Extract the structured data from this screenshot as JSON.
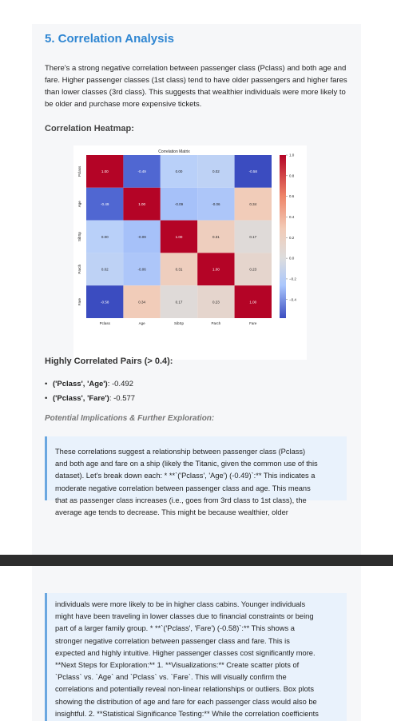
{
  "section": {
    "title": "5. Correlation Analysis",
    "intro": "There's a strong negative correlation between passenger class (Pclass) and both age and fare. Higher passenger classes (1st class) tend to have older passengers and higher fares than lower classes (3rd class). This suggests that wealthier individuals were more likely to be older and purchase more expensive tickets.",
    "heatmap_heading": "Correlation Heatmap:"
  },
  "chart_data": {
    "type": "heatmap",
    "title": "Correlation Matrix",
    "labels": [
      "Pclass",
      "Age",
      "SibSp",
      "Parch",
      "Fare"
    ],
    "matrix": [
      [
        1.0,
        -0.49,
        0.0,
        0.02,
        -0.58
      ],
      [
        -0.49,
        1.0,
        -0.09,
        -0.06,
        0.34
      ],
      [
        0.0,
        -0.09,
        1.0,
        0.31,
        0.17
      ],
      [
        0.02,
        -0.06,
        0.31,
        1.0,
        0.23
      ],
      [
        -0.58,
        0.34,
        0.17,
        0.23,
        1.0
      ]
    ],
    "cell_labels": [
      [
        "1.00",
        "-0.49",
        "0.00",
        "0.02",
        "-0.58"
      ],
      [
        "-0.49",
        "1.00",
        "-0.09",
        "-0.06",
        "0.34"
      ],
      [
        "0.00",
        "-0.09",
        "1.00",
        "0.31",
        "0.17"
      ],
      [
        "0.02",
        "-0.06",
        "0.31",
        "1.00",
        "0.23"
      ],
      [
        "-0.58",
        "0.34",
        "0.17",
        "0.23",
        "1.00"
      ]
    ],
    "colorbar_range": [
      -0.58,
      1.0
    ],
    "colorbar_ticks": [
      "1.0",
      "0.8",
      "0.6",
      "0.4",
      "0.2",
      "0.0",
      "−0.2",
      "−0.4"
    ],
    "colorbar_tick_values": [
      1.0,
      0.8,
      0.6,
      0.4,
      0.2,
      0.0,
      -0.2,
      -0.4
    ],
    "colormap": "coolwarm",
    "colors": {
      "low": "#3b4cc0",
      "mid": "#dddddd",
      "high": "#b40426"
    }
  },
  "pairs": {
    "title": "Highly Correlated Pairs (> 0.4):",
    "items": [
      {
        "pair": "('Pclass', 'Age')",
        "value": ": -0.492"
      },
      {
        "pair": "('Pclass', 'Fare')",
        "value": ": -0.577"
      }
    ]
  },
  "implications": {
    "heading": "Potential Implications & Further Exploration:",
    "part1_lines": [
      "These correlations suggest a relationship between passenger class (Pclass)",
      "and both age and fare on a ship (likely the Titanic, given the common use of this",
      "dataset). Let's break down each: * **`('Pclass', 'Age') (-0.49)`:** This indicates a",
      "moderate negative correlation between passenger class and age. This means",
      "that as passenger class increases (i.e., goes from 3rd class to 1st class), the",
      "average age tends to decrease. This might be because wealthier, older"
    ],
    "part2_lines": [
      "individuals were more likely to be in higher class cabins. Younger individuals",
      "might have been traveling in lower classes due to financial constraints or being",
      "part of a larger family group. * **`('Pclass', 'Fare') (-0.58)`:** This shows a",
      "stronger negative correlation between passenger class and fare. This is",
      "expected and highly intuitive. Higher passenger classes cost significantly more.",
      "**Next Steps for Exploration:** 1. **Visualizations:** Create scatter plots of",
      "`Pclass` vs. `Age` and `Pclass` vs. `Fare`. This will visually confirm the",
      "correlations and potentially reveal non-linear relationships or outliers. Box plots",
      "showing the distribution of age and fare for each passenger class would also be",
      "insightful. 2. **Statistical Significance Testing:** While the correlation coefficients"
    ]
  }
}
